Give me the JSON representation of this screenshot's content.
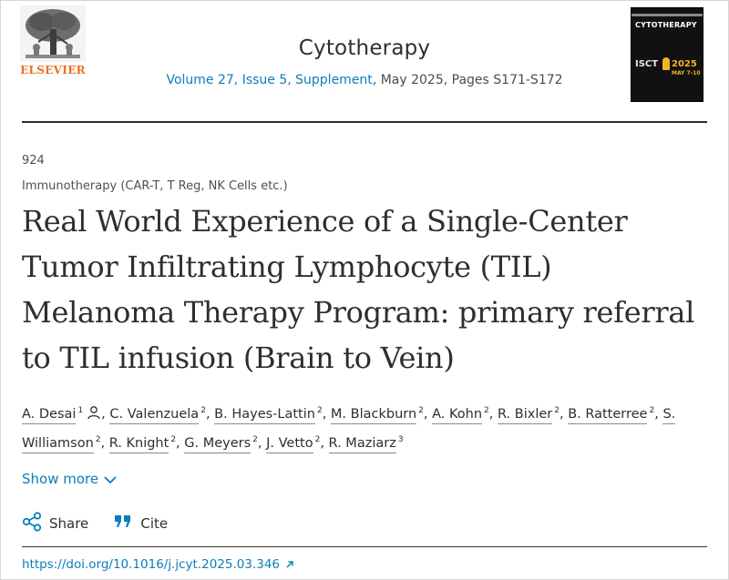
{
  "publisher": {
    "name": "ELSEVIER",
    "logo_icon": "elsevier-tree-logo"
  },
  "journal": {
    "title": "Cytotherapy",
    "volume_link": "Volume 27, Issue 5, Supplement",
    "issue_rest": ", May 2025, Pages S171-S172"
  },
  "cover": {
    "title": "CYTOTHERAPY",
    "isct": "ISCT",
    "year": "2025",
    "dates": "MAY 7-10"
  },
  "article": {
    "number": "924",
    "section": "Immunotherapy (CAR-T, T Reg, NK Cells etc.)",
    "title": "Real World Experience of a Single-Center Tumor Infiltrating Lymphocyte (TIL) Melanoma Therapy Program: primary referral to TIL infusion (Brain to Vein)"
  },
  "authors": [
    {
      "name": "A. Desai",
      "aff": "1",
      "corresponding": true
    },
    {
      "name": "C. Valenzuela",
      "aff": "2"
    },
    {
      "name": "B. Hayes-Lattin",
      "aff": "2"
    },
    {
      "name": "M. Blackburn",
      "aff": "2"
    },
    {
      "name": "A. Kohn",
      "aff": "2"
    },
    {
      "name": "R. Bixler",
      "aff": "2"
    },
    {
      "name": "B. Ratterree",
      "aff": "2"
    },
    {
      "name": "S. Williamson",
      "aff": "2"
    },
    {
      "name": "R. Knight",
      "aff": "2"
    },
    {
      "name": "G. Meyers",
      "aff": "2"
    },
    {
      "name": "J. Vetto",
      "aff": "2"
    },
    {
      "name": "R. Maziarz",
      "aff": "3"
    }
  ],
  "ui": {
    "show_more": "Show more",
    "share": "Share",
    "cite": "Cite",
    "doi": "https://doi.org/10.1016/j.jcyt.2025.03.346",
    "accent_color": "#0c7dbb",
    "brand_color": "#e9711c"
  }
}
